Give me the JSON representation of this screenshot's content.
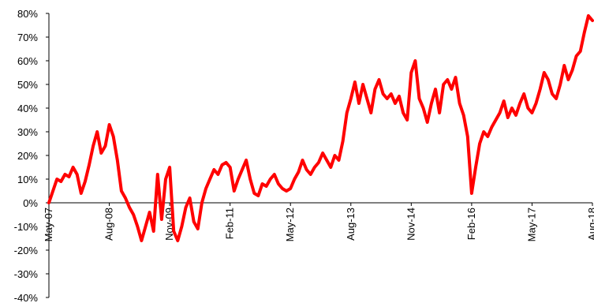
{
  "chart_data": {
    "type": "line",
    "title": "",
    "xlabel": "",
    "ylabel": "",
    "ylim": [
      -40,
      80
    ],
    "y_tick_step": 10,
    "y_tick_labels": [
      "80%",
      "70%",
      "60%",
      "50%",
      "40%",
      "30%",
      "20%",
      "10%",
      "0%",
      "-10%",
      "-20%",
      "-30%",
      "-40%"
    ],
    "x_tick_labels": [
      "May-07",
      "Aug-08",
      "Nov-09",
      "Feb-11",
      "May-12",
      "Aug-13",
      "Nov-14",
      "Feb-16",
      "May-17",
      "Aug-18"
    ],
    "grid": false,
    "legend": "none",
    "line_color": "#ff0000",
    "series": [
      {
        "values": [
          [
            "2007-05",
            0
          ],
          [
            "2007-06",
            5
          ],
          [
            "2007-07",
            10
          ],
          [
            "2007-08",
            9
          ],
          [
            "2007-09",
            12
          ],
          [
            "2007-10",
            11
          ],
          [
            "2007-11",
            15
          ],
          [
            "2007-12",
            12
          ],
          [
            "2008-01",
            4
          ],
          [
            "2008-02",
            9
          ],
          [
            "2008-03",
            16
          ],
          [
            "2008-04",
            24
          ],
          [
            "2008-05",
            30
          ],
          [
            "2008-06",
            21
          ],
          [
            "2008-07",
            24
          ],
          [
            "2008-08",
            33
          ],
          [
            "2008-09",
            28
          ],
          [
            "2008-10",
            18
          ],
          [
            "2008-11",
            5
          ],
          [
            "2008-12",
            2
          ],
          [
            "2009-01",
            -2
          ],
          [
            "2009-02",
            -5
          ],
          [
            "2009-03",
            -10
          ],
          [
            "2009-04",
            -16
          ],
          [
            "2009-05",
            -10
          ],
          [
            "2009-06",
            -4
          ],
          [
            "2009-07",
            -12
          ],
          [
            "2009-08",
            12
          ],
          [
            "2009-09",
            -7
          ],
          [
            "2009-10",
            10
          ],
          [
            "2009-11",
            15
          ],
          [
            "2009-12",
            -12
          ],
          [
            "2010-01",
            -16
          ],
          [
            "2010-02",
            -10
          ],
          [
            "2010-03",
            -2
          ],
          [
            "2010-04",
            2
          ],
          [
            "2010-05",
            -8
          ],
          [
            "2010-06",
            -11
          ],
          [
            "2010-07",
            0
          ],
          [
            "2010-08",
            6
          ],
          [
            "2010-09",
            10
          ],
          [
            "2010-10",
            14
          ],
          [
            "2010-11",
            12
          ],
          [
            "2010-12",
            16
          ],
          [
            "2011-01",
            17
          ],
          [
            "2011-02",
            15
          ],
          [
            "2011-03",
            5
          ],
          [
            "2011-04",
            10
          ],
          [
            "2011-05",
            14
          ],
          [
            "2011-06",
            18
          ],
          [
            "2011-07",
            10
          ],
          [
            "2011-08",
            4
          ],
          [
            "2011-09",
            3
          ],
          [
            "2011-10",
            8
          ],
          [
            "2011-11",
            7
          ],
          [
            "2011-12",
            10
          ],
          [
            "2012-01",
            12
          ],
          [
            "2012-02",
            8
          ],
          [
            "2012-03",
            6
          ],
          [
            "2012-04",
            5
          ],
          [
            "2012-05",
            6
          ],
          [
            "2012-06",
            10
          ],
          [
            "2012-07",
            13
          ],
          [
            "2012-08",
            18
          ],
          [
            "2012-09",
            14
          ],
          [
            "2012-10",
            12
          ],
          [
            "2012-11",
            15
          ],
          [
            "2012-12",
            17
          ],
          [
            "2013-01",
            21
          ],
          [
            "2013-02",
            18
          ],
          [
            "2013-03",
            15
          ],
          [
            "2013-04",
            20
          ],
          [
            "2013-05",
            18
          ],
          [
            "2013-06",
            26
          ],
          [
            "2013-07",
            38
          ],
          [
            "2013-08",
            44
          ],
          [
            "2013-09",
            51
          ],
          [
            "2013-10",
            42
          ],
          [
            "2013-11",
            50
          ],
          [
            "2013-12",
            44
          ],
          [
            "2014-01",
            38
          ],
          [
            "2014-02",
            48
          ],
          [
            "2014-03",
            52
          ],
          [
            "2014-04",
            46
          ],
          [
            "2014-05",
            44
          ],
          [
            "2014-06",
            46
          ],
          [
            "2014-07",
            42
          ],
          [
            "2014-08",
            45
          ],
          [
            "2014-09",
            38
          ],
          [
            "2014-10",
            35
          ],
          [
            "2014-11",
            55
          ],
          [
            "2014-12",
            60
          ],
          [
            "2015-01",
            44
          ],
          [
            "2015-02",
            40
          ],
          [
            "2015-03",
            34
          ],
          [
            "2015-04",
            42
          ],
          [
            "2015-05",
            48
          ],
          [
            "2015-06",
            38
          ],
          [
            "2015-07",
            50
          ],
          [
            "2015-08",
            52
          ],
          [
            "2015-09",
            48
          ],
          [
            "2015-10",
            53
          ],
          [
            "2015-11",
            42
          ],
          [
            "2015-12",
            37
          ],
          [
            "2016-01",
            28
          ],
          [
            "2016-02",
            4
          ],
          [
            "2016-03",
            15
          ],
          [
            "2016-04",
            25
          ],
          [
            "2016-05",
            30
          ],
          [
            "2016-06",
            28
          ],
          [
            "2016-07",
            32
          ],
          [
            "2016-08",
            35
          ],
          [
            "2016-09",
            38
          ],
          [
            "2016-10",
            43
          ],
          [
            "2016-11",
            36
          ],
          [
            "2016-12",
            40
          ],
          [
            "2017-01",
            37
          ],
          [
            "2017-02",
            42
          ],
          [
            "2017-03",
            46
          ],
          [
            "2017-04",
            40
          ],
          [
            "2017-05",
            38
          ],
          [
            "2017-06",
            42
          ],
          [
            "2017-07",
            48
          ],
          [
            "2017-08",
            55
          ],
          [
            "2017-09",
            52
          ],
          [
            "2017-10",
            46
          ],
          [
            "2017-11",
            44
          ],
          [
            "2017-12",
            50
          ],
          [
            "2018-01",
            58
          ],
          [
            "2018-02",
            52
          ],
          [
            "2018-03",
            56
          ],
          [
            "2018-04",
            62
          ],
          [
            "2018-05",
            64
          ],
          [
            "2018-06",
            72
          ],
          [
            "2018-07",
            79
          ],
          [
            "2018-08",
            77
          ]
        ]
      }
    ]
  }
}
